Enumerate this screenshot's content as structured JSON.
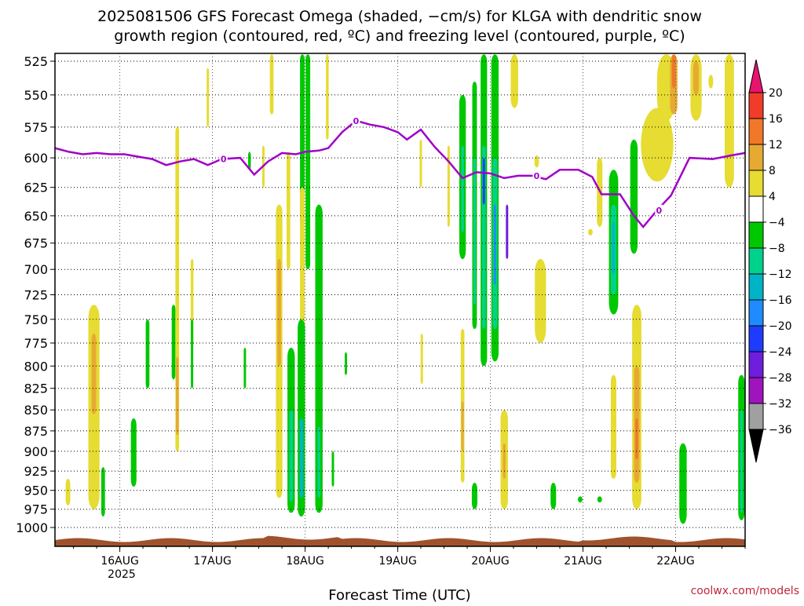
{
  "chart_data": {
    "type": "heatmap",
    "title_lines": [
      "2025081506 GFS Forecast Omega (shaded, −cm/s) for KLGA with dendritic snow",
      "growth region (contoured, red, ºC) and freezing level (contoured, purple, ºC)"
    ],
    "xlabel": "Forecast Time (UTC)",
    "credit": "coolwx.com/models",
    "year_label": "2025",
    "x_range_days": [
      15.3,
      22.75
    ],
    "x_ticks": [
      {
        "day": 16,
        "label": "16AUG"
      },
      {
        "day": 17,
        "label": "17AUG"
      },
      {
        "day": 18,
        "label": "18AUG"
      },
      {
        "day": 19,
        "label": "19AUG"
      },
      {
        "day": 20,
        "label": "20AUG"
      },
      {
        "day": 21,
        "label": "21AUG"
      },
      {
        "day": 22,
        "label": "22AUG"
      }
    ],
    "y_axis": {
      "units": "hPa",
      "scale": "log-pressure",
      "range": [
        1000,
        520
      ],
      "ticks": [
        525,
        550,
        575,
        600,
        625,
        650,
        675,
        700,
        725,
        750,
        775,
        800,
        825,
        850,
        875,
        900,
        925,
        950,
        975,
        1000
      ]
    },
    "colorbar": {
      "labels": [
        "20",
        "16",
        "12",
        "8",
        "4",
        "−4",
        "−8",
        "−12",
        "−16",
        "−20",
        "−24",
        "−28",
        "−32",
        "−36"
      ],
      "bins": [
        {
          "color": "#e8146e",
          "range": "> 20"
        },
        {
          "color": "#f03c28",
          "range": "16 to 20"
        },
        {
          "color": "#f07828",
          "range": "12 to 16"
        },
        {
          "color": "#e6aa32",
          "range": "8 to 12"
        },
        {
          "color": "#e6dc32",
          "range": "4 to 8"
        },
        {
          "color": "#ffffff",
          "range": "-4 to 4"
        },
        {
          "color": "#00c800",
          "range": "-8 to -4"
        },
        {
          "color": "#00d28c",
          "range": "-12 to -8"
        },
        {
          "color": "#00b4c8",
          "range": "-16 to -12"
        },
        {
          "color": "#1e8cff",
          "range": "-20 to -16"
        },
        {
          "color": "#1e3cff",
          "range": "-24 to -20"
        },
        {
          "color": "#6e1edc",
          "range": "-28 to -24"
        },
        {
          "color": "#a014be",
          "range": "-32 to -28"
        },
        {
          "color": "#a0a0a0",
          "range": "-36 to -32"
        },
        {
          "color": "#000000",
          "range": "< -36"
        }
      ]
    },
    "freezing_level": {
      "color": "#a000c8",
      "contour_label": "0",
      "points": [
        [
          15.3,
          592
        ],
        [
          15.45,
          595
        ],
        [
          15.6,
          597
        ],
        [
          15.75,
          596
        ],
        [
          15.9,
          597
        ],
        [
          16.05,
          597
        ],
        [
          16.2,
          599
        ],
        [
          16.35,
          601
        ],
        [
          16.5,
          606
        ],
        [
          16.65,
          603
        ],
        [
          16.8,
          601
        ],
        [
          16.95,
          606
        ],
        [
          17.1,
          601
        ],
        [
          17.3,
          600
        ],
        [
          17.45,
          614
        ],
        [
          17.6,
          603
        ],
        [
          17.75,
          596
        ],
        [
          17.9,
          597
        ],
        [
          18.0,
          595
        ],
        [
          18.15,
          594
        ],
        [
          18.25,
          592
        ],
        [
          18.4,
          579
        ],
        [
          18.55,
          570
        ],
        [
          18.7,
          573
        ],
        [
          18.85,
          575
        ],
        [
          19.0,
          579
        ],
        [
          19.1,
          585
        ],
        [
          19.25,
          577
        ],
        [
          19.4,
          591
        ],
        [
          19.55,
          603
        ],
        [
          19.7,
          617
        ],
        [
          19.85,
          612
        ],
        [
          20.0,
          613
        ],
        [
          20.15,
          617
        ],
        [
          20.3,
          615
        ],
        [
          20.45,
          615
        ],
        [
          20.6,
          618
        ],
        [
          20.75,
          610
        ],
        [
          20.95,
          610
        ],
        [
          21.1,
          616
        ],
        [
          21.2,
          631
        ],
        [
          21.4,
          631
        ],
        [
          21.55,
          650
        ],
        [
          21.65,
          660
        ],
        [
          21.8,
          645
        ],
        [
          21.95,
          632
        ],
        [
          22.15,
          600
        ],
        [
          22.4,
          601
        ],
        [
          22.6,
          598
        ],
        [
          22.75,
          596
        ]
      ]
    },
    "omega_regions": [
      {
        "day": 15.72,
        "p_top": 735,
        "p_bot": 975,
        "width": 0.12,
        "value": 6
      },
      {
        "day": 15.72,
        "p_top": 765,
        "p_bot": 855,
        "width": 0.05,
        "value": 10
      },
      {
        "day": 15.44,
        "p_top": 935,
        "p_bot": 970,
        "width": 0.05,
        "value": 5
      },
      {
        "day": 15.82,
        "p_top": 920,
        "p_bot": 985,
        "width": 0.04,
        "value": -6
      },
      {
        "day": 16.12,
        "p_top": 735,
        "p_bot": 935,
        "width": 0.05,
        "value": 4
      },
      {
        "day": 16.15,
        "p_top": 860,
        "p_bot": 945,
        "width": 0.06,
        "value": -6
      },
      {
        "day": 16.3,
        "p_top": 750,
        "p_bot": 825,
        "width": 0.04,
        "value": -6
      },
      {
        "day": 16.58,
        "p_top": 735,
        "p_bot": 815,
        "width": 0.04,
        "value": -6
      },
      {
        "day": 16.62,
        "p_top": 575,
        "p_bot": 900,
        "width": 0.04,
        "value": 5
      },
      {
        "day": 16.62,
        "p_top": 790,
        "p_bot": 880,
        "width": 0.03,
        "value": 9
      },
      {
        "day": 16.78,
        "p_top": 690,
        "p_bot": 780,
        "width": 0.03,
        "value": 5
      },
      {
        "day": 16.78,
        "p_top": 750,
        "p_bot": 825,
        "width": 0.02,
        "value": -6
      },
      {
        "day": 16.95,
        "p_top": 530,
        "p_bot": 575,
        "width": 0.02,
        "value": 5
      },
      {
        "day": 17.4,
        "p_top": 595,
        "p_bot": 610,
        "width": 0.03,
        "value": -6
      },
      {
        "day": 17.35,
        "p_top": 780,
        "p_bot": 825,
        "width": 0.02,
        "value": -6
      },
      {
        "day": 17.55,
        "p_top": 590,
        "p_bot": 625,
        "width": 0.02,
        "value": 5
      },
      {
        "day": 17.64,
        "p_top": 520,
        "p_bot": 565,
        "width": 0.04,
        "value": 5
      },
      {
        "day": 17.72,
        "p_top": 640,
        "p_bot": 960,
        "width": 0.07,
        "value": 5
      },
      {
        "day": 17.72,
        "p_top": 690,
        "p_bot": 800,
        "width": 0.04,
        "value": 9
      },
      {
        "day": 17.82,
        "p_top": 595,
        "p_bot": 700,
        "width": 0.04,
        "value": 5
      },
      {
        "day": 17.97,
        "p_top": 520,
        "p_bot": 660,
        "width": 0.05,
        "value": -6
      },
      {
        "day": 17.97,
        "p_top": 625,
        "p_bot": 760,
        "width": 0.05,
        "value": 5
      },
      {
        "day": 17.85,
        "p_top": 780,
        "p_bot": 980,
        "width": 0.08,
        "value": -6
      },
      {
        "day": 17.85,
        "p_top": 850,
        "p_bot": 965,
        "width": 0.04,
        "value": -11
      },
      {
        "day": 18.03,
        "p_top": 520,
        "p_bot": 700,
        "width": 0.05,
        "value": -6
      },
      {
        "day": 17.96,
        "p_top": 750,
        "p_bot": 985,
        "width": 0.08,
        "value": -6
      },
      {
        "day": 17.96,
        "p_top": 860,
        "p_bot": 960,
        "width": 0.04,
        "value": -14
      },
      {
        "day": 18.15,
        "p_top": 640,
        "p_bot": 980,
        "width": 0.08,
        "value": -6
      },
      {
        "day": 18.15,
        "p_top": 870,
        "p_bot": 960,
        "width": 0.03,
        "value": -10
      },
      {
        "day": 18.24,
        "p_top": 520,
        "p_bot": 585,
        "width": 0.03,
        "value": 5
      },
      {
        "day": 18.3,
        "p_top": 900,
        "p_bot": 945,
        "width": 0.02,
        "value": -6
      },
      {
        "day": 18.44,
        "p_top": 785,
        "p_bot": 810,
        "width": 0.02,
        "value": -6
      },
      {
        "day": 19.25,
        "p_top": 585,
        "p_bot": 625,
        "width": 0.02,
        "value": 5
      },
      {
        "day": 19.26,
        "p_top": 765,
        "p_bot": 820,
        "width": 0.02,
        "value": 5
      },
      {
        "day": 19.55,
        "p_top": 590,
        "p_bot": 660,
        "width": 0.02,
        "value": 5
      },
      {
        "day": 19.7,
        "p_top": 550,
        "p_bot": 690,
        "width": 0.07,
        "value": -6
      },
      {
        "day": 19.7,
        "p_top": 590,
        "p_bot": 665,
        "width": 0.03,
        "value": -10
      },
      {
        "day": 19.7,
        "p_top": 760,
        "p_bot": 940,
        "width": 0.04,
        "value": 5
      },
      {
        "day": 19.7,
        "p_top": 840,
        "p_bot": 900,
        "width": 0.02,
        "value": 9
      },
      {
        "day": 19.83,
        "p_top": 540,
        "p_bot": 760,
        "width": 0.05,
        "value": -6
      },
      {
        "day": 19.83,
        "p_top": 600,
        "p_bot": 735,
        "width": 0.025,
        "value": -10
      },
      {
        "day": 19.93,
        "p_top": 520,
        "p_bot": 800,
        "width": 0.07,
        "value": -6
      },
      {
        "day": 19.93,
        "p_top": 590,
        "p_bot": 760,
        "width": 0.04,
        "value": -11
      },
      {
        "day": 19.93,
        "p_top": 600,
        "p_bot": 640,
        "width": 0.015,
        "value": -22
      },
      {
        "day": 20.05,
        "p_top": 520,
        "p_bot": 795,
        "width": 0.08,
        "value": -6
      },
      {
        "day": 20.05,
        "p_top": 600,
        "p_bot": 760,
        "width": 0.05,
        "value": -11
      },
      {
        "day": 20.05,
        "p_top": 640,
        "p_bot": 715,
        "width": 0.02,
        "value": -18
      },
      {
        "day": 20.18,
        "p_top": 640,
        "p_bot": 690,
        "width": 0.02,
        "value": -26
      },
      {
        "day": 19.83,
        "p_top": 940,
        "p_bot": 975,
        "width": 0.06,
        "value": -6
      },
      {
        "day": 20.15,
        "p_top": 850,
        "p_bot": 975,
        "width": 0.08,
        "value": 5
      },
      {
        "day": 20.15,
        "p_top": 890,
        "p_bot": 935,
        "width": 0.03,
        "value": 9
      },
      {
        "day": 20.26,
        "p_top": 520,
        "p_bot": 560,
        "width": 0.08,
        "value": 5
      },
      {
        "day": 20.54,
        "p_top": 690,
        "p_bot": 775,
        "width": 0.12,
        "value": 5
      },
      {
        "day": 20.5,
        "p_top": 598,
        "p_bot": 608,
        "width": 0.05,
        "value": 5
      },
      {
        "day": 20.68,
        "p_top": 940,
        "p_bot": 975,
        "width": 0.06,
        "value": -6
      },
      {
        "day": 20.97,
        "p_top": 958,
        "p_bot": 966,
        "width": 0.05,
        "value": -6
      },
      {
        "day": 21.18,
        "p_top": 958,
        "p_bot": 966,
        "width": 0.05,
        "value": -6
      },
      {
        "day": 21.18,
        "p_top": 600,
        "p_bot": 660,
        "width": 0.06,
        "value": 5
      },
      {
        "day": 21.08,
        "p_top": 662,
        "p_bot": 668,
        "width": 0.05,
        "value": 5
      },
      {
        "day": 21.33,
        "p_top": 610,
        "p_bot": 745,
        "width": 0.1,
        "value": -6
      },
      {
        "day": 21.33,
        "p_top": 640,
        "p_bot": 725,
        "width": 0.06,
        "value": -11
      },
      {
        "day": 21.33,
        "p_top": 655,
        "p_bot": 705,
        "width": 0.03,
        "value": -15
      },
      {
        "day": 21.33,
        "p_top": 810,
        "p_bot": 935,
        "width": 0.06,
        "value": 5
      },
      {
        "day": 21.58,
        "p_top": 735,
        "p_bot": 975,
        "width": 0.1,
        "value": 5
      },
      {
        "day": 21.58,
        "p_top": 800,
        "p_bot": 940,
        "width": 0.06,
        "value": 9
      },
      {
        "day": 21.58,
        "p_top": 860,
        "p_bot": 910,
        "width": 0.03,
        "value": 13
      },
      {
        "day": 21.55,
        "p_top": 585,
        "p_bot": 685,
        "width": 0.08,
        "value": -6
      },
      {
        "day": 21.8,
        "p_top": 560,
        "p_bot": 620,
        "width": 0.35,
        "value": 5
      },
      {
        "day": 21.9,
        "p_top": 520,
        "p_bot": 570,
        "width": 0.2,
        "value": 5
      },
      {
        "day": 21.98,
        "p_top": 520,
        "p_bot": 565,
        "width": 0.08,
        "value": 9
      },
      {
        "day": 21.98,
        "p_top": 520,
        "p_bot": 545,
        "width": 0.04,
        "value": 14
      },
      {
        "day": 22.08,
        "p_top": 890,
        "p_bot": 995,
        "width": 0.08,
        "value": -6
      },
      {
        "day": 22.22,
        "p_top": 520,
        "p_bot": 570,
        "width": 0.12,
        "value": 5
      },
      {
        "day": 22.22,
        "p_top": 525,
        "p_bot": 550,
        "width": 0.06,
        "value": 9
      },
      {
        "day": 22.38,
        "p_top": 535,
        "p_bot": 545,
        "width": 0.05,
        "value": 5
      },
      {
        "day": 22.58,
        "p_top": 520,
        "p_bot": 625,
        "width": 0.1,
        "value": 5
      },
      {
        "day": 22.71,
        "p_top": 810,
        "p_bot": 990,
        "width": 0.07,
        "value": -6
      },
      {
        "day": 22.71,
        "p_top": 850,
        "p_bot": 980,
        "width": 0.03,
        "value": -10
      }
    ]
  }
}
